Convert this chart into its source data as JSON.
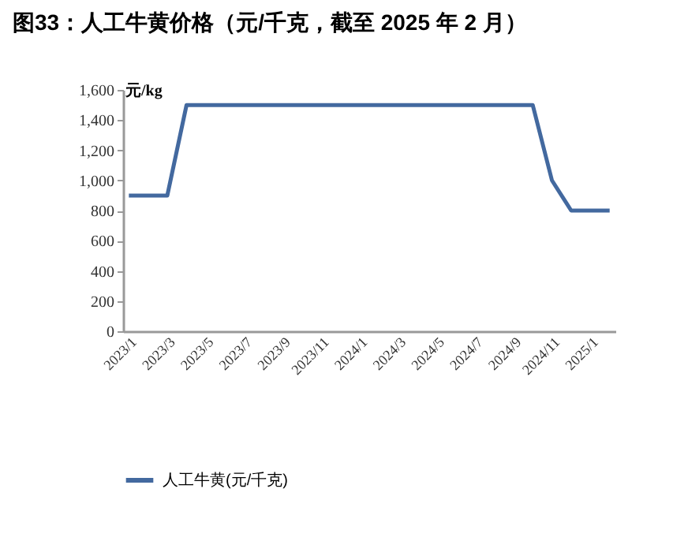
{
  "chart_data": {
    "type": "line",
    "title": "图33：人工牛黄价格（元/千克，截至 2025 年 2 月）",
    "ylabel": "元/kg",
    "categories": [
      "2023/1",
      null,
      "2023/3",
      null,
      "2023/5",
      null,
      "2023/7",
      null,
      "2023/9",
      null,
      "2023/11",
      null,
      "2024/1",
      null,
      "2024/3",
      null,
      "2024/5",
      null,
      "2024/7",
      null,
      "2024/9",
      null,
      "2024/11",
      null,
      "2025/1",
      null
    ],
    "series": [
      {
        "name": "人工牛黄(元/千克)",
        "color": "#43699f",
        "values": [
          900,
          900,
          900,
          1500,
          1500,
          1500,
          1500,
          1500,
          1500,
          1500,
          1500,
          1500,
          1500,
          1500,
          1500,
          1500,
          1500,
          1500,
          1500,
          1500,
          1500,
          1500,
          1000,
          800,
          800,
          800
        ]
      }
    ],
    "ylim": [
      0,
      1600
    ],
    "yticks": [
      0,
      200,
      400,
      600,
      800,
      {
        "value": 1000,
        "label": "1,000"
      },
      {
        "value": 1200,
        "label": "1,200"
      },
      {
        "value": 1400,
        "label": "1,400"
      },
      {
        "value": 1600,
        "label": "1,600"
      }
    ],
    "grid": false,
    "legend": "bottom",
    "marker": "none",
    "line_style": "solid"
  }
}
